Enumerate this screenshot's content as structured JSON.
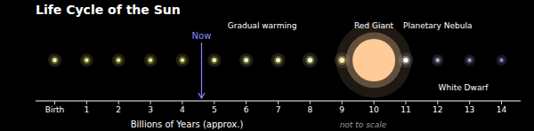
{
  "chart_data": {
    "type": "scatter",
    "title": "Life Cycle of the Sun",
    "x_label": "Billions of Years (approx.)",
    "x": [
      0,
      1,
      2,
      3,
      4,
      5,
      6,
      7,
      8,
      9,
      10,
      11,
      12,
      13,
      14
    ],
    "sizes": [
      8,
      7,
      7,
      7,
      7,
      8,
      9,
      10,
      12,
      14,
      900,
      12,
      5,
      4,
      3
    ],
    "colors": [
      "#ffff99",
      "#ffff88",
      "#ffff88",
      "#ffff88",
      "#ffff88",
      "#ffff99",
      "#ffffaa",
      "#ffffaa",
      "#ffffbb",
      "#ffeeaa",
      "#ffcc99",
      "#ffffff",
      "#ccccff",
      "#bbbbff",
      "#aaaaff"
    ],
    "xlim": [
      -0.6,
      14.6
    ],
    "xticks": [
      {
        "value": 0,
        "label": "Birth"
      },
      1,
      2,
      3,
      4,
      5,
      6,
      7,
      8,
      9,
      10,
      11,
      12,
      13,
      14
    ],
    "tick_labels": "x",
    "annotations": [
      {
        "text": "Now",
        "x": 4.6,
        "arrow": true
      },
      {
        "text": "Gradual warming",
        "x": 6.5
      },
      {
        "text": "Red Giant",
        "x": 10.0
      },
      {
        "text": "Planetary Nebula",
        "x": 12.0
      },
      {
        "text": "White Dwarf",
        "x": 12.8
      },
      {
        "text": "not to scale"
      }
    ]
  }
}
